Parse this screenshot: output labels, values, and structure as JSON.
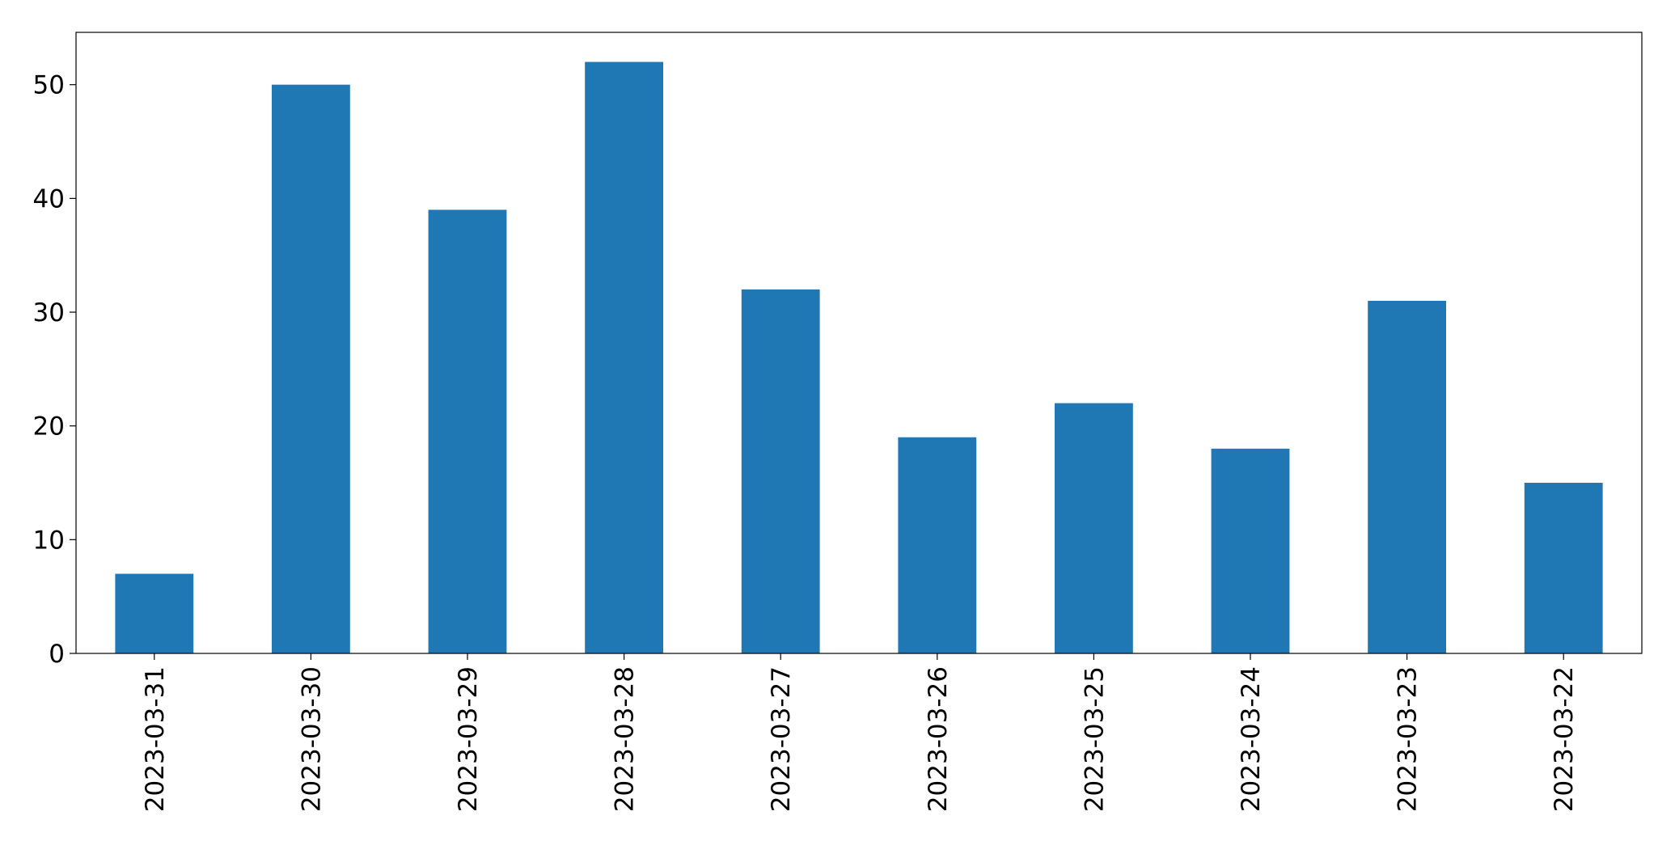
{
  "chart_data": {
    "type": "bar",
    "categories": [
      "2023-03-31",
      "2023-03-30",
      "2023-03-29",
      "2023-03-28",
      "2023-03-27",
      "2023-03-26",
      "2023-03-25",
      "2023-03-24",
      "2023-03-23",
      "2023-03-22"
    ],
    "values": [
      7,
      50,
      39,
      52,
      32,
      19,
      22,
      18,
      31,
      15
    ],
    "color": "#1f77b4",
    "ylim": [
      0,
      54.6
    ],
    "yticks": [
      0,
      10,
      20,
      30,
      40,
      50
    ],
    "grid": false
  }
}
